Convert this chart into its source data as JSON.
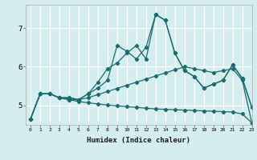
{
  "xlabel": "Humidex (Indice chaleur)",
  "ylabel": "",
  "background_color": "#d4eef0",
  "grid_color": "#ffffff",
  "line_color": "#1a6b6b",
  "xlim": [
    -0.5,
    23
  ],
  "ylim": [
    4.5,
    7.6
  ],
  "yticks": [
    5,
    6,
    7
  ],
  "xticks": [
    0,
    1,
    2,
    3,
    4,
    5,
    6,
    7,
    8,
    9,
    10,
    11,
    12,
    13,
    14,
    15,
    16,
    17,
    18,
    19,
    20,
    21,
    22,
    23
  ],
  "series": [
    [
      4.65,
      5.3,
      5.3,
      5.2,
      5.2,
      5.15,
      5.3,
      5.45,
      5.65,
      6.55,
      6.4,
      6.2,
      6.5,
      7.35,
      7.2,
      6.35,
      5.9,
      5.75,
      5.45,
      5.55,
      5.65,
      6.05,
      5.7,
      4.95
    ],
    [
      4.65,
      5.3,
      5.3,
      5.2,
      5.2,
      5.15,
      5.3,
      5.6,
      5.95,
      6.1,
      6.35,
      6.55,
      6.2,
      7.35,
      7.2,
      6.35,
      5.9,
      5.75,
      5.45,
      5.55,
      5.65,
      6.05,
      5.7,
      4.95
    ],
    [
      4.65,
      5.3,
      5.3,
      5.2,
      5.15,
      5.15,
      5.2,
      5.28,
      5.36,
      5.44,
      5.52,
      5.6,
      5.68,
      5.76,
      5.84,
      5.92,
      6.0,
      5.95,
      5.9,
      5.85,
      5.9,
      5.95,
      5.65,
      4.55
    ],
    [
      4.65,
      5.3,
      5.3,
      5.2,
      5.15,
      5.1,
      5.07,
      5.04,
      5.01,
      4.99,
      4.97,
      4.95,
      4.93,
      4.91,
      4.9,
      4.89,
      4.88,
      4.87,
      4.86,
      4.85,
      4.84,
      4.83,
      4.78,
      4.55
    ]
  ]
}
